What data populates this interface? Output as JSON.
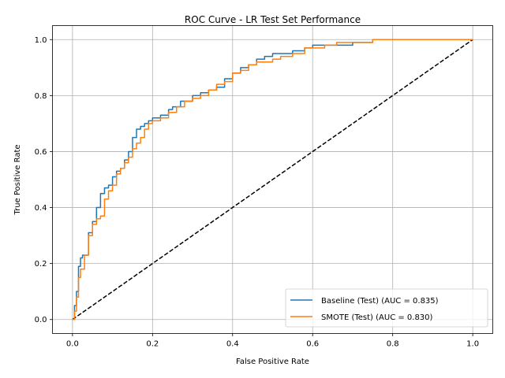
{
  "chart_data": {
    "type": "line",
    "title": "ROC Curve - LR Test Set Performance",
    "xlabel": "False Positive Rate",
    "ylabel": "True Positive Rate",
    "xlim": [
      -0.05,
      1.05
    ],
    "ylim": [
      -0.05,
      1.05
    ],
    "xticks": [
      0.0,
      0.2,
      0.4,
      0.6,
      0.8,
      1.0
    ],
    "yticks": [
      0.0,
      0.2,
      0.4,
      0.6,
      0.8,
      1.0
    ],
    "xtick_labels": [
      "0.0",
      "0.2",
      "0.4",
      "0.6",
      "0.8",
      "1.0"
    ],
    "ytick_labels": [
      "0.0",
      "0.2",
      "0.4",
      "0.6",
      "0.8",
      "1.0"
    ],
    "grid": true,
    "legend_position": "lower-right",
    "series": [
      {
        "name": "Baseline (Test) (AUC = 0.835)",
        "color": "#1f77b4",
        "style": "step",
        "x": [
          0.0,
          0.005,
          0.01,
          0.015,
          0.02,
          0.025,
          0.03,
          0.04,
          0.05,
          0.06,
          0.07,
          0.08,
          0.09,
          0.1,
          0.11,
          0.12,
          0.13,
          0.14,
          0.15,
          0.16,
          0.17,
          0.18,
          0.19,
          0.2,
          0.22,
          0.24,
          0.25,
          0.27,
          0.3,
          0.32,
          0.34,
          0.36,
          0.38,
          0.4,
          0.42,
          0.44,
          0.46,
          0.48,
          0.5,
          0.52,
          0.55,
          0.58,
          0.6,
          0.63,
          0.66,
          0.7,
          0.75,
          0.8,
          0.9,
          1.0
        ],
        "y": [
          0.0,
          0.05,
          0.1,
          0.19,
          0.22,
          0.23,
          0.23,
          0.31,
          0.35,
          0.4,
          0.45,
          0.47,
          0.48,
          0.51,
          0.53,
          0.54,
          0.57,
          0.6,
          0.65,
          0.68,
          0.69,
          0.7,
          0.71,
          0.72,
          0.73,
          0.75,
          0.76,
          0.78,
          0.8,
          0.81,
          0.82,
          0.83,
          0.86,
          0.88,
          0.9,
          0.91,
          0.93,
          0.94,
          0.95,
          0.95,
          0.96,
          0.97,
          0.98,
          0.98,
          0.98,
          0.99,
          1.0,
          1.0,
          1.0,
          1.0
        ]
      },
      {
        "name": "SMOTE (Test) (AUC = 0.830)",
        "color": "#ff7f0e",
        "style": "step",
        "x": [
          0.0,
          0.005,
          0.01,
          0.015,
          0.02,
          0.03,
          0.04,
          0.05,
          0.06,
          0.07,
          0.08,
          0.09,
          0.1,
          0.11,
          0.12,
          0.13,
          0.14,
          0.15,
          0.16,
          0.17,
          0.18,
          0.19,
          0.2,
          0.22,
          0.24,
          0.26,
          0.28,
          0.3,
          0.32,
          0.34,
          0.36,
          0.38,
          0.4,
          0.42,
          0.44,
          0.46,
          0.48,
          0.5,
          0.52,
          0.55,
          0.58,
          0.6,
          0.63,
          0.66,
          0.7,
          0.75,
          0.8,
          0.9,
          1.0
        ],
        "y": [
          0.0,
          0.03,
          0.08,
          0.15,
          0.18,
          0.23,
          0.3,
          0.34,
          0.36,
          0.37,
          0.43,
          0.46,
          0.48,
          0.52,
          0.54,
          0.56,
          0.58,
          0.61,
          0.63,
          0.65,
          0.68,
          0.7,
          0.71,
          0.72,
          0.74,
          0.76,
          0.78,
          0.79,
          0.8,
          0.82,
          0.84,
          0.85,
          0.88,
          0.89,
          0.91,
          0.92,
          0.92,
          0.93,
          0.94,
          0.95,
          0.97,
          0.97,
          0.98,
          0.99,
          0.99,
          1.0,
          1.0,
          1.0,
          1.0
        ]
      },
      {
        "name": "",
        "color": "#000000",
        "style": "dashed",
        "x": [
          0.0,
          1.0
        ],
        "y": [
          0.0,
          1.0
        ]
      }
    ]
  }
}
